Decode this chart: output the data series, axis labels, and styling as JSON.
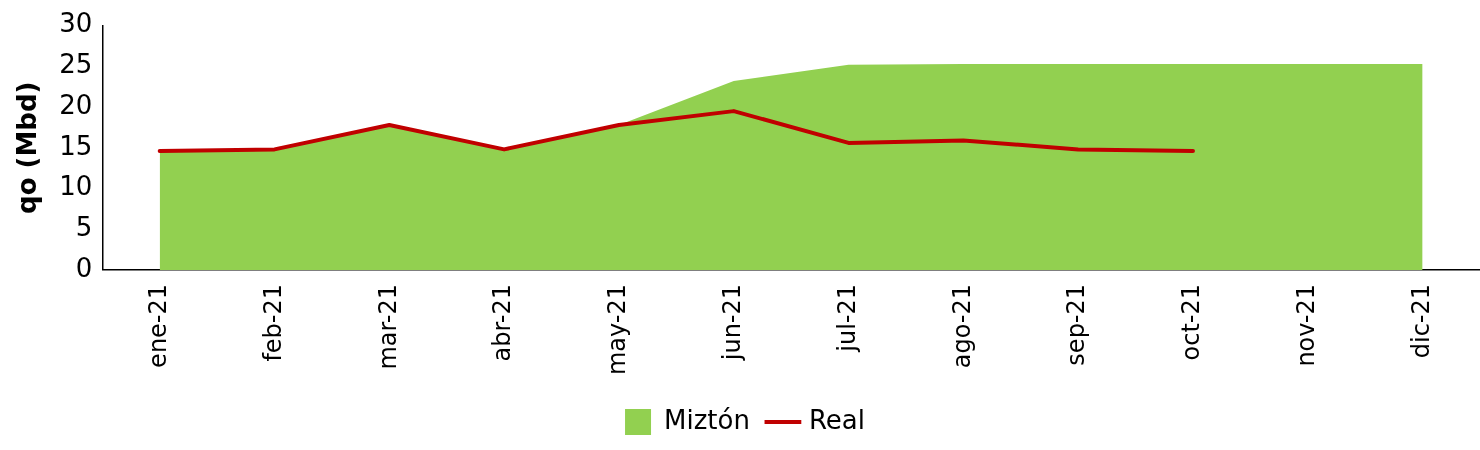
{
  "chart_data": {
    "type": "line",
    "ylabel": "qo (Mbd)",
    "categories": [
      "ene-21",
      "feb-21",
      "mar-21",
      "abr-21",
      "may-21",
      "jun-21",
      "jul-21",
      "ago-21",
      "sep-21",
      "oct-21",
      "nov-21",
      "dic-21"
    ],
    "series": [
      {
        "name": "Miztón",
        "type": "area",
        "color": "#92d050",
        "values": [
          14.6,
          14.8,
          17.8,
          14.8,
          17.8,
          23.2,
          25.2,
          25.3,
          25.3,
          25.3,
          25.3,
          25.3
        ]
      },
      {
        "name": "Real",
        "color": "#c00000",
        "values": [
          14.6,
          14.8,
          17.8,
          14.8,
          17.8,
          19.5,
          15.6,
          15.9,
          14.8,
          14.6,
          null,
          null
        ]
      }
    ],
    "ylim": [
      0,
      30
    ],
    "yticks": [
      0,
      5,
      10,
      15,
      20,
      25,
      30
    ],
    "grid": false,
    "legend": "bottom"
  }
}
